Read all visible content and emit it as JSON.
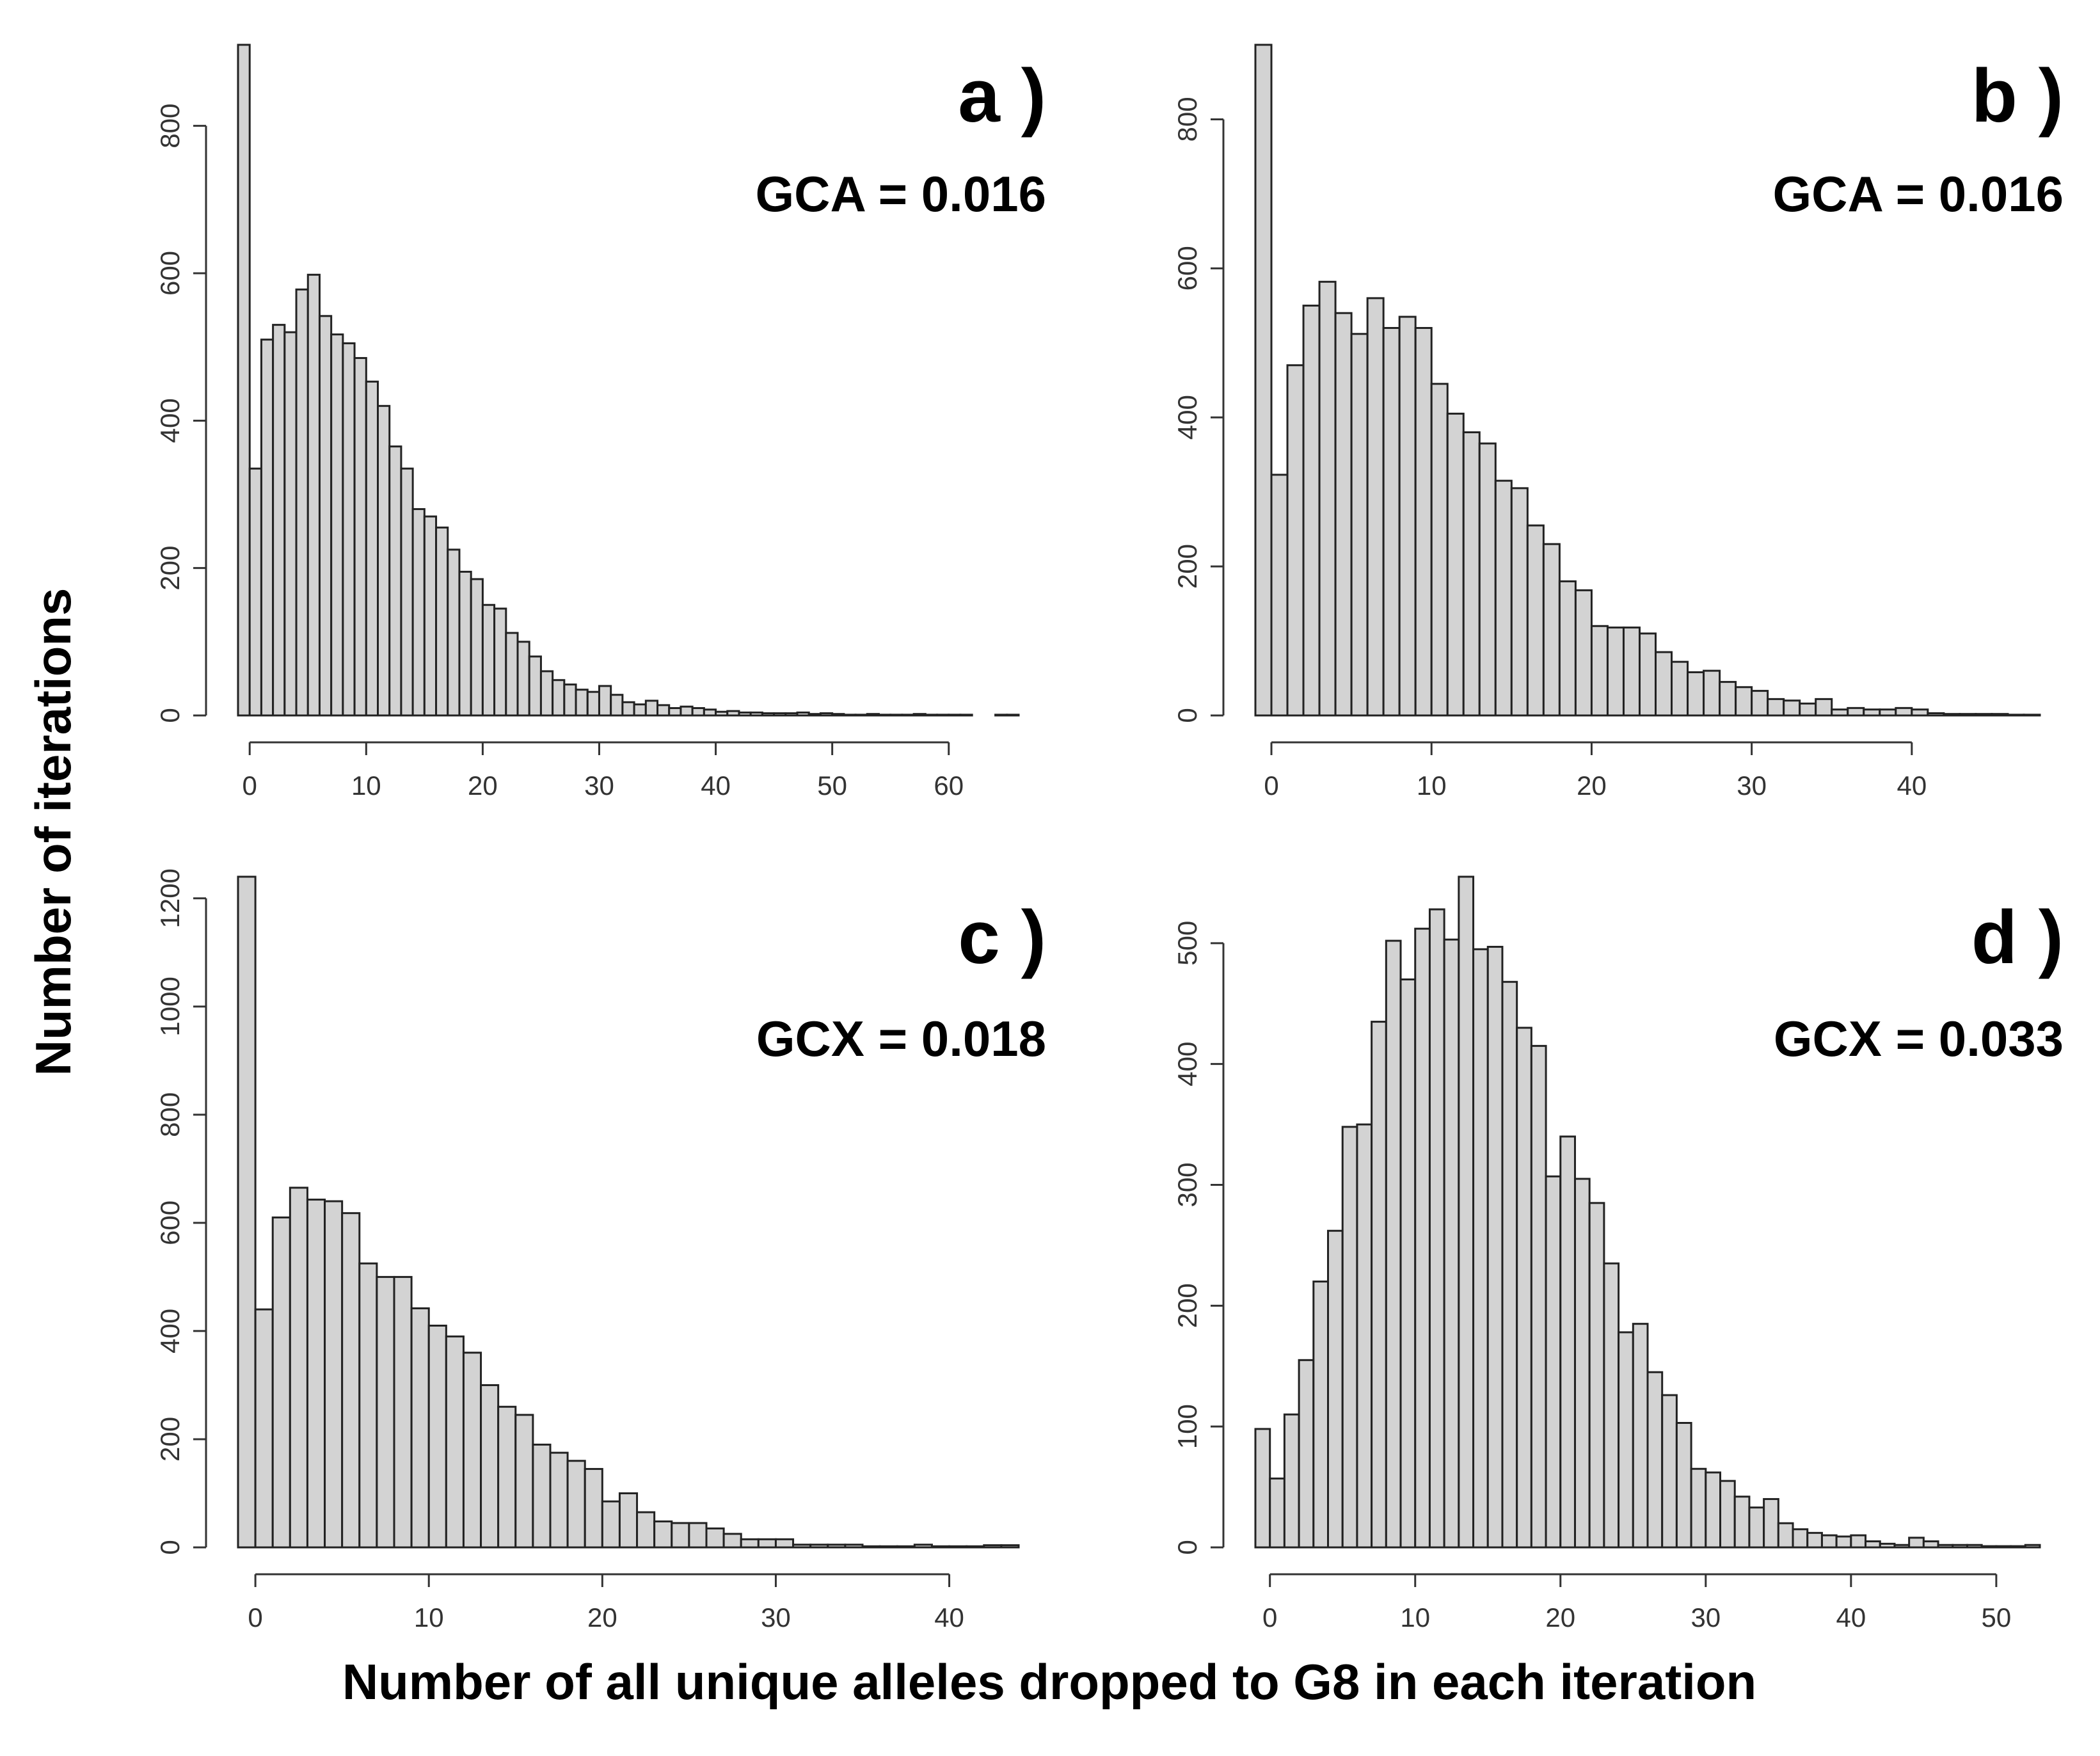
{
  "ylabel": "Number of iterations",
  "xlabel": "Number of all unique alleles dropped to G8 in each iteration",
  "bar_color": "#d3d3d3",
  "edge_color": "#222222",
  "chart_data": [
    {
      "type": "bar",
      "panel": "a )",
      "stat": "GCA = 0.016",
      "xlim": [
        -1,
        66
      ],
      "ylim": [
        0,
        910
      ],
      "xticks": [
        0,
        10,
        20,
        30,
        40,
        50,
        60
      ],
      "yticks": [
        0,
        200,
        400,
        600,
        800
      ],
      "x_start": -1,
      "values": [
        910,
        335,
        510,
        530,
        520,
        578,
        598,
        542,
        517,
        505,
        485,
        453,
        420,
        365,
        335,
        280,
        270,
        255,
        225,
        195,
        185,
        150,
        145,
        112,
        100,
        80,
        60,
        48,
        42,
        35,
        32,
        40,
        28,
        18,
        15,
        20,
        14,
        10,
        12,
        10,
        8,
        5,
        6,
        4,
        4,
        3,
        3,
        3,
        4,
        2,
        3,
        2,
        1,
        1,
        2,
        1,
        1,
        1,
        2,
        1,
        1,
        1,
        1,
        0,
        0,
        1,
        1
      ]
    },
    {
      "type": "bar",
      "panel": "b )",
      "stat": "GCA = 0.016",
      "xlim": [
        -1,
        48
      ],
      "ylim": [
        0,
        900
      ],
      "xticks": [
        0,
        10,
        20,
        30,
        40
      ],
      "yticks": [
        0,
        200,
        400,
        600,
        800
      ],
      "x_start": -1,
      "values": [
        900,
        323,
        470,
        550,
        582,
        540,
        512,
        560,
        520,
        535,
        520,
        445,
        405,
        380,
        365,
        315,
        305,
        255,
        230,
        180,
        168,
        120,
        118,
        118,
        110,
        85,
        72,
        58,
        60,
        45,
        38,
        33,
        22,
        20,
        16,
        22,
        8,
        10,
        8,
        8,
        10,
        8,
        3,
        2,
        2,
        2,
        2,
        1,
        1
      ]
    },
    {
      "type": "bar",
      "panel": "c )",
      "stat": "GCX = 0.018",
      "xlim": [
        -1,
        44
      ],
      "ylim": [
        0,
        1240
      ],
      "xticks": [
        0,
        10,
        20,
        30,
        40
      ],
      "yticks": [
        0,
        200,
        400,
        600,
        800,
        1000,
        1200
      ],
      "x_start": -1,
      "values": [
        1240,
        440,
        610,
        665,
        643,
        640,
        618,
        525,
        500,
        500,
        442,
        410,
        390,
        360,
        300,
        260,
        245,
        190,
        175,
        160,
        145,
        85,
        100,
        65,
        48,
        45,
        45,
        35,
        25,
        15,
        15,
        15,
        5,
        5,
        5,
        5,
        2,
        2,
        2,
        5,
        2,
        2,
        2,
        4,
        4
      ]
    },
    {
      "type": "bar",
      "panel": "d )",
      "stat": "GCX = 0.033",
      "xlim": [
        -1,
        53
      ],
      "ylim": [
        0,
        555
      ],
      "xticks": [
        0,
        10,
        20,
        30,
        40,
        50
      ],
      "yticks": [
        0,
        100,
        200,
        300,
        400,
        500
      ],
      "x_start": -1,
      "values": [
        98,
        57,
        110,
        155,
        220,
        262,
        348,
        350,
        435,
        502,
        470,
        512,
        528,
        503,
        555,
        495,
        497,
        468,
        430,
        415,
        307,
        340,
        305,
        285,
        235,
        178,
        185,
        145,
        126,
        103,
        65,
        62,
        55,
        42,
        33,
        40,
        20,
        15,
        12,
        10,
        9,
        10,
        5,
        3,
        2,
        8,
        5,
        2,
        2,
        2,
        1,
        1,
        1,
        2
      ]
    }
  ]
}
